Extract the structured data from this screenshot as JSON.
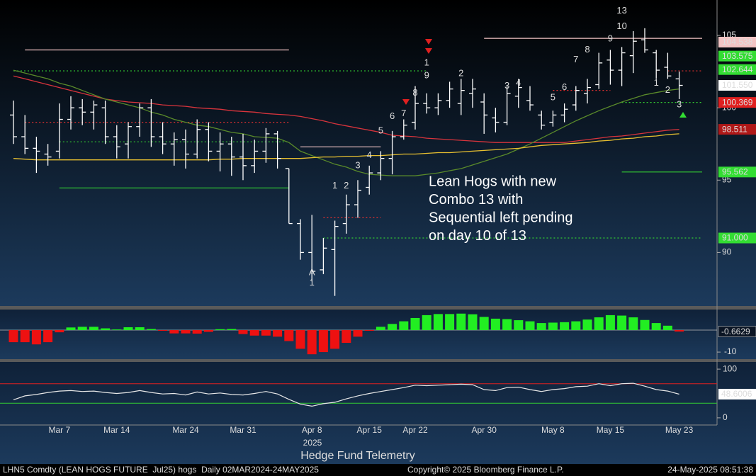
{
  "chart_data": [
    {
      "type": "ohlc",
      "categories": [
        null,
        null,
        null,
        null,
        "Mar 7",
        null,
        null,
        null,
        null,
        "Mar 14",
        null,
        null,
        null,
        null,
        null,
        "Mar 24",
        null,
        null,
        null,
        null,
        "Mar 31",
        null,
        null,
        null,
        null,
        null,
        "Apr 8",
        null,
        null,
        null,
        null,
        "Apr 15",
        null,
        null,
        null,
        "Apr 22",
        null,
        null,
        null,
        null,
        null,
        "Apr 30",
        null,
        null,
        null,
        null,
        null,
        "May 8",
        null,
        null,
        null,
        null,
        "May 15",
        null,
        null,
        null,
        null,
        null,
        "May 23"
      ],
      "year_label": "2025",
      "open": [
        99.5,
        98.0,
        97.2,
        96.8,
        97.0,
        99.2,
        100.0,
        99.7,
        100.0,
        98.0,
        97.5,
        98.7,
        100.0,
        98.0,
        97.5,
        97.8,
        96.8,
        98.5,
        97.0,
        97.5,
        96.6,
        96.0,
        97.0,
        98.2,
        95.8,
        92.0,
        90.0,
        88.8,
        90.2,
        92.0,
        93.3,
        94.5,
        95.5,
        96.5,
        98.0,
        99.0,
        100.3,
        100.0,
        100.5,
        100.3,
        101.0,
        100.4,
        99.3,
        99.0,
        100.8,
        100.5,
        99.5,
        99.0,
        99.5,
        100.2,
        101.0,
        101.6,
        103.3,
        102.6,
        103.6,
        104.7,
        103.8,
        102.8,
        102.0
      ],
      "high": [
        100.5,
        99.5,
        98.0,
        97.5,
        100.3,
        100.8,
        100.6,
        100.5,
        100.5,
        98.8,
        99.0,
        100.3,
        100.6,
        99.0,
        98.3,
        98.5,
        99.2,
        99.0,
        98.3,
        98.0,
        98.2,
        97.8,
        98.6,
        98.4,
        95.8,
        92.3,
        92.6,
        91.0,
        92.2,
        94.0,
        95.0,
        96.0,
        97.0,
        98.4,
        99.2,
        101.5,
        101.0,
        101.0,
        101.8,
        102.0,
        102.0,
        101.0,
        100.0,
        101.5,
        102.0,
        101.5,
        99.8,
        99.8,
        100.3,
        101.5,
        102.0,
        103.8,
        104.0,
        104.2,
        105.3,
        105.5,
        104.0,
        103.8,
        102.5
      ],
      "low": [
        97.5,
        96.8,
        95.5,
        96.0,
        96.5,
        98.5,
        98.8,
        98.5,
        97.5,
        96.5,
        96.5,
        98.0,
        97.3,
        96.8,
        96.0,
        95.8,
        96.5,
        96.3,
        95.6,
        95.3,
        95.0,
        95.5,
        96.2,
        95.8,
        92.0,
        89.5,
        88.0,
        88.5,
        87.0,
        91.3,
        92.4,
        94.0,
        95.0,
        95.4,
        97.8,
        98.5,
        99.6,
        99.5,
        100.0,
        99.5,
        100.0,
        98.2,
        98.3,
        98.8,
        100.0,
        99.8,
        98.5,
        98.7,
        99.0,
        99.8,
        100.3,
        101.3,
        101.6,
        101.5,
        102.4,
        103.8,
        102.0,
        102.0,
        100.6
      ],
      "close": [
        98.0,
        97.2,
        97.0,
        96.6,
        99.2,
        100.0,
        99.7,
        100.2,
        98.0,
        97.3,
        98.7,
        100.0,
        98.0,
        97.5,
        97.8,
        96.8,
        98.5,
        97.0,
        97.5,
        96.6,
        96.0,
        97.0,
        98.2,
        96.5,
        92.0,
        90.0,
        88.7,
        90.3,
        91.8,
        93.3,
        94.3,
        95.5,
        96.5,
        98.0,
        98.8,
        100.3,
        100.0,
        100.5,
        101.3,
        101.2,
        101.3,
        99.5,
        99.0,
        101.0,
        101.4,
        100.2,
        98.8,
        99.5,
        99.9,
        101.2,
        101.4,
        103.1,
        102.6,
        103.8,
        104.6,
        104.0,
        102.6,
        102.2,
        101.55
      ],
      "color": "#ffffff",
      "ylim": [
        86.3,
        107.45
      ],
      "yticks": [
        105,
        100,
        95,
        90
      ],
      "series": [
        {
          "color": "#d8343c",
          "values": [
            102.2,
            102.0,
            101.8,
            101.6,
            101.4,
            101.2,
            101.0,
            100.8,
            100.6,
            100.5,
            100.4,
            100.35,
            100.3,
            100.2,
            100.15,
            100.1,
            100.0,
            99.95,
            99.9,
            99.8,
            99.75,
            99.7,
            99.6,
            99.55,
            99.5,
            99.4,
            99.25,
            99.1,
            98.9,
            98.75,
            98.6,
            98.45,
            98.3,
            98.1,
            98.05,
            98.0,
            97.9,
            97.85,
            97.8,
            97.75,
            97.7,
            97.65,
            97.6,
            97.6,
            97.6,
            97.6,
            97.6,
            97.6,
            97.6,
            97.7,
            97.8,
            97.9,
            98.0,
            98.05,
            98.15,
            98.25,
            98.35,
            98.45,
            98.5
          ]
        },
        {
          "color": "#5a8a2a",
          "values": [
            102.6,
            102.4,
            102.2,
            102.0,
            101.7,
            101.5,
            101.2,
            100.9,
            100.6,
            100.4,
            100.2,
            100.0,
            99.7,
            99.5,
            99.2,
            99.0,
            98.8,
            98.7,
            98.5,
            98.3,
            98.2,
            98.0,
            97.95,
            97.9,
            97.6,
            97.0,
            96.7,
            96.4,
            96.1,
            95.9,
            95.6,
            95.4,
            95.35,
            95.3,
            95.3,
            95.3,
            95.4,
            95.5,
            95.65,
            95.8,
            96.05,
            96.3,
            96.55,
            96.8,
            97.15,
            97.5,
            97.9,
            98.3,
            98.7,
            99.1,
            99.45,
            99.8,
            100.1,
            100.4,
            100.65,
            100.9,
            101.05,
            101.2,
            101.3
          ]
        },
        {
          "color": "#e8c030",
          "values": [
            96.5,
            96.45,
            96.4,
            96.4,
            96.4,
            96.4,
            96.4,
            96.4,
            96.4,
            96.4,
            96.4,
            96.4,
            96.4,
            96.4,
            96.4,
            96.4,
            96.4,
            96.4,
            96.45,
            96.45,
            96.5,
            96.5,
            96.5,
            96.5,
            96.5,
            96.5,
            96.55,
            96.6,
            96.6,
            96.65,
            96.65,
            96.7,
            96.7,
            96.75,
            96.8,
            96.8,
            96.85,
            96.9,
            96.9,
            96.95,
            97.0,
            97.05,
            97.1,
            97.15,
            97.2,
            97.3,
            97.4,
            97.45,
            97.5,
            97.55,
            97.6,
            97.7,
            97.75,
            97.85,
            97.9,
            98.0,
            98.05,
            98.15,
            98.2
          ]
        }
      ],
      "levels": [
        {
          "value": 104.0,
          "from": 1,
          "to": 24,
          "color": "#f2c4c4",
          "dash": false
        },
        {
          "value": 102.55,
          "from": 0,
          "to": 36,
          "color": "#33cc33",
          "dash": true
        },
        {
          "value": 99.0,
          "from": 1,
          "to": 24,
          "color": "#e03030",
          "dash": true
        },
        {
          "value": 97.65,
          "from": 4,
          "to": 24,
          "color": "#33cc33",
          "dash": true
        },
        {
          "value": 94.46,
          "from": 4,
          "to": 24,
          "color": "#33cc33",
          "dash": false
        },
        {
          "value": 97.3,
          "from": 25,
          "to": 32,
          "color": "#f2c4c4",
          "dash": false
        },
        {
          "value": 92.4,
          "from": 27,
          "to": 32,
          "color": "#e03030",
          "dash": true
        },
        {
          "value": 91.0,
          "from": 27,
          "to": 60,
          "color": "#33cc33",
          "dash": true
        },
        {
          "value": 104.8,
          "from": 41,
          "to": 60,
          "color": "#f2c4c4",
          "dash": false
        },
        {
          "value": 101.2,
          "from": 47,
          "to": 52,
          "color": "#e03030",
          "dash": true
        },
        {
          "value": 102.55,
          "from": 57,
          "to": 60,
          "color": "#e03030",
          "dash": true
        },
        {
          "value": 100.369,
          "from": 53,
          "to": 60,
          "color": "#33cc33",
          "dash": true
        },
        {
          "value": 95.562,
          "from": 53,
          "to": 60,
          "color": "#33cc33",
          "dash": false
        }
      ],
      "price_labels": [
        {
          "value": 104.538,
          "bg": "#f2c4c4",
          "fg": "#000000"
        },
        {
          "value": 103.575,
          "bg": "#33dd33",
          "fg": "#000000"
        },
        {
          "value": 102.644,
          "bg": "#33dd33",
          "fg": "#000000"
        },
        {
          "value": 101.55,
          "label": "101.550",
          "bg": "#ffffff",
          "fg": "#000000"
        },
        {
          "value": 100.369,
          "bg": "#e02020",
          "fg": "#ffffff"
        },
        {
          "value": 98.511,
          "bg": "#b01818",
          "fg": "#ffffff"
        },
        {
          "value": 95.562,
          "bg": "#33dd33",
          "fg": "#000000"
        },
        {
          "value": 91.0,
          "label": "91.000",
          "bg": "#33dd33",
          "fg": "#000000"
        }
      ],
      "annotations": [
        {
          "text": "1",
          "x": 28,
          "y": 94.6,
          "color": "#33dd33"
        },
        {
          "text": "2",
          "x": 29,
          "y": 94.6,
          "color": "#33dd33"
        },
        {
          "text": "3",
          "x": 30,
          "y": 96.0,
          "color": "#33dd33"
        },
        {
          "text": "4",
          "x": 31,
          "y": 96.7,
          "color": "#33dd33"
        },
        {
          "text": "5",
          "x": 32,
          "y": 98.4,
          "color": "#33dd33"
        },
        {
          "text": "6",
          "x": 33,
          "y": 99.4,
          "color": "#33dd33"
        },
        {
          "text": "7",
          "x": 34,
          "y": 99.6,
          "color": "#33dd33"
        },
        {
          "text": "8",
          "x": 35,
          "y": 101.0,
          "color": "#33dd33"
        },
        {
          "text": "9",
          "x": 36,
          "y": 102.2,
          "color": "#33dd33"
        },
        {
          "text": "1",
          "x": 36,
          "y": 103.1,
          "color": "#e8413c"
        },
        {
          "text": "2",
          "x": 39,
          "y": 102.35,
          "color": "#e8413c"
        },
        {
          "text": "3",
          "x": 43,
          "y": 101.5,
          "color": "#e8413c"
        },
        {
          "text": "4",
          "x": 44,
          "y": 101.7,
          "color": "#e8413c"
        },
        {
          "text": "5",
          "x": 47,
          "y": 100.7,
          "color": "#e8413c"
        },
        {
          "text": "6",
          "x": 48,
          "y": 101.4,
          "color": "#e8413c"
        },
        {
          "text": "7",
          "x": 49,
          "y": 103.3,
          "color": "#e8413c"
        },
        {
          "text": "8",
          "x": 50,
          "y": 104.0,
          "color": "#e8413c"
        },
        {
          "text": "9",
          "x": 52,
          "y": 104.75,
          "color": "#e8413c"
        },
        {
          "text": "10",
          "x": 53,
          "y": 105.6,
          "color": "#e8413c"
        },
        {
          "text": "13",
          "x": 53,
          "y": 106.7,
          "color": "#c030c0"
        },
        {
          "text": "1",
          "x": 56,
          "y": 101.7,
          "color": "#33dd33"
        },
        {
          "text": "2",
          "x": 57,
          "y": 101.2,
          "color": "#33dd33"
        },
        {
          "text": "3",
          "x": 58,
          "y": 100.2,
          "color": "#33dd33"
        },
        {
          "text": "A",
          "x": 26,
          "y": 88.6,
          "color": "#3cc8e8"
        },
        {
          "text": "1",
          "x": 26,
          "y": 87.9,
          "color": "#f0d040"
        }
      ],
      "note": [
        "Lean Hogs with new",
        "Combo 13 with",
        "Sequential left pending",
        "on day 10 of 13"
      ]
    },
    {
      "type": "bar",
      "values": [
        -5.5,
        -5.5,
        -6.5,
        -5.5,
        -1.0,
        1.2,
        1.5,
        1.5,
        0.8,
        0.3,
        1.3,
        1.3,
        0.5,
        -0.3,
        -1.5,
        -1.5,
        -1.6,
        -0.8,
        0.4,
        0.5,
        -1.8,
        -2.5,
        -2.5,
        -3.0,
        -5.0,
        -8.5,
        -11,
        -10,
        -8.5,
        -5.8,
        -3.0,
        -0.3,
        1.5,
        2.8,
        4.0,
        5.5,
        6.8,
        7.3,
        7.3,
        7.5,
        7.2,
        6.0,
        5.2,
        5.0,
        4.5,
        4.0,
        3.2,
        3.4,
        3.6,
        4.0,
        4.8,
        5.8,
        6.8,
        6.6,
        5.8,
        4.6,
        3.2,
        2.0,
        -0.6629
      ],
      "color_up": "#22ee22",
      "color_down": "#ee1111",
      "ylim": [
        -13.2,
        9.35
      ],
      "yticks": [
        -10
      ]
    },
    {
      "type": "line",
      "values": [
        37,
        45,
        48,
        52,
        55,
        56,
        54,
        55,
        52,
        50,
        52,
        56,
        52,
        49,
        50,
        47,
        53,
        49,
        51,
        48,
        47,
        50,
        54,
        49,
        38,
        28,
        24,
        29,
        32,
        39,
        45,
        50,
        54,
        58,
        62,
        67,
        66,
        67,
        68,
        69,
        68,
        58,
        56,
        62,
        63,
        58,
        54,
        58,
        60,
        64,
        65,
        70,
        66,
        70,
        71,
        65,
        58,
        55,
        48.6006
      ],
      "color": "#e8e8e8",
      "ylim": [
        -14.7,
        114.7
      ],
      "yticks": [
        100,
        0
      ],
      "levels": [
        {
          "value": 70,
          "color": "#e02020"
        },
        {
          "value": 30,
          "color": "#33cc33"
        }
      ]
    }
  ],
  "footer": {
    "title": "Hedge Fund Telemetry",
    "security": "LHN5 Comdty (LEAN HOGS FUTURE  Jul25) hogs  Daily 02MAR2024-24MAY2025",
    "copyright": "Copyright© 2025 Bloomberg Finance L.P.",
    "timestamp": "24-May-2025 08:51:38"
  }
}
